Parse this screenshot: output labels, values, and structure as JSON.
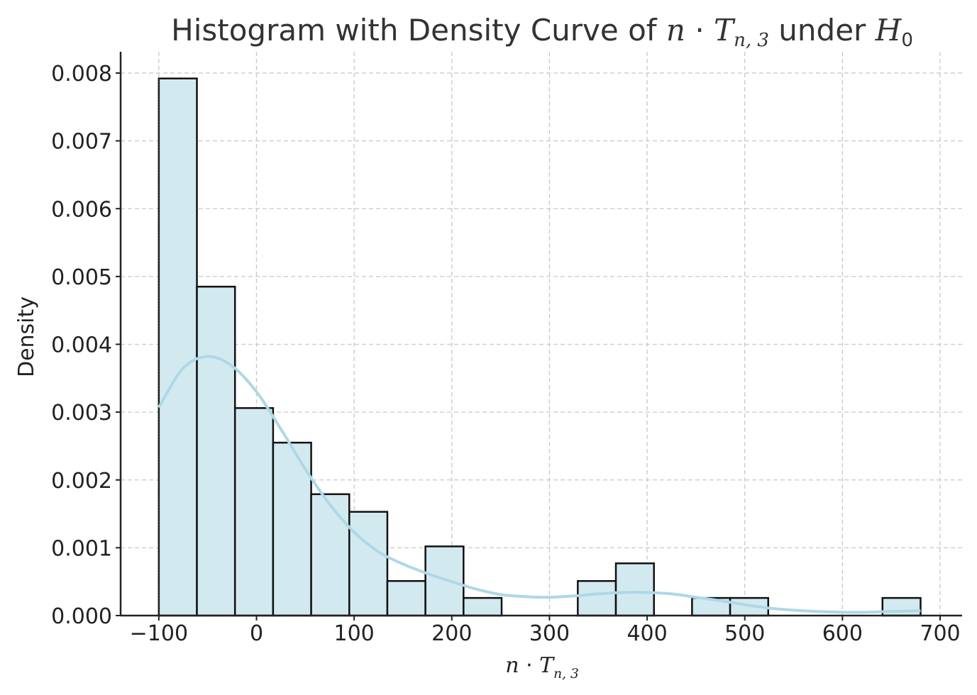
{
  "chart_data": {
    "type": "bar",
    "title_parts": {
      "prefix": "Histogram with Density Curve of ",
      "var_n": "n",
      "cdot": " · ",
      "var_T": "T",
      "sub_T": "n, 3",
      "mid": " under ",
      "var_H": "H",
      "sub_H": "0"
    },
    "xlabel_parts": {
      "var_n": "n",
      "cdot": " · ",
      "var_T": "T",
      "sub_T": "n, 3"
    },
    "ylabel": "Density",
    "xlim": [
      -140,
      725
    ],
    "ylim": [
      0,
      0.0083
    ],
    "xticks": [
      -100,
      0,
      100,
      200,
      300,
      400,
      500,
      600,
      700
    ],
    "xtick_labels": [
      "−100",
      "0",
      "100",
      "200",
      "300",
      "400",
      "500",
      "600",
      "700"
    ],
    "yticks": [
      0,
      0.001,
      0.002,
      0.003,
      0.004,
      0.005,
      0.006,
      0.007,
      0.008
    ],
    "ytick_labels": [
      "0.000",
      "0.001",
      "0.002",
      "0.003",
      "0.004",
      "0.005",
      "0.006",
      "0.007",
      "0.008"
    ],
    "grid": true,
    "bins": {
      "edges": [
        -100,
        -61,
        -22,
        17,
        56,
        95,
        134,
        173,
        212,
        251,
        290,
        329,
        368,
        407,
        446,
        485,
        524,
        563,
        602,
        641,
        680
      ],
      "values": [
        0.00792,
        0.00485,
        0.00306,
        0.00255,
        0.00179,
        0.00153,
        0.00051,
        0.00102,
        0.00026,
        0,
        0,
        0.00051,
        0.00077,
        0,
        0.00026,
        0.00026,
        0,
        0,
        0,
        0.00026
      ]
    },
    "density_curve": {
      "x": [
        -100,
        -75,
        -50,
        -25,
        0,
        25,
        50,
        75,
        100,
        125,
        150,
        175,
        200,
        225,
        250,
        275,
        300,
        325,
        350,
        375,
        400,
        425,
        450,
        475,
        500,
        525,
        550,
        575,
        600,
        625,
        650,
        680
      ],
      "y": [
        0.00307,
        0.00365,
        0.00382,
        0.00368,
        0.0033,
        0.00275,
        0.00216,
        0.00164,
        0.00123,
        0.00094,
        0.00076,
        0.00062,
        0.0005,
        0.00039,
        0.00031,
        0.00028,
        0.00027,
        0.00029,
        0.00032,
        0.00034,
        0.00034,
        0.00032,
        0.00027,
        0.00022,
        0.00016,
        0.00011,
        8e-05,
        6e-05,
        5e-05,
        5e-05,
        6e-05,
        7e-05
      ]
    }
  }
}
